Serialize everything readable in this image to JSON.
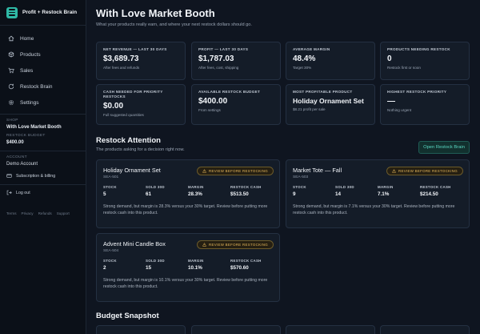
{
  "app": {
    "title": "Profit + Restock Brain"
  },
  "nav": [
    {
      "label": "Home",
      "icon": "home-icon"
    },
    {
      "label": "Products",
      "icon": "box-icon"
    },
    {
      "label": "Sales",
      "icon": "cart-icon"
    },
    {
      "label": "Restock Brain",
      "icon": "refresh-icon"
    },
    {
      "label": "Settings",
      "icon": "gear-icon"
    }
  ],
  "sidebar": {
    "shop_label": "SHOP",
    "shop_name": "With Love Market Booth",
    "budget_label": "RESTOCK BUDGET",
    "budget_value": "$400.00",
    "account_label": "ACCOUNT",
    "account_name": "Demo Account",
    "subscription_label": "Subscription & billing",
    "logout_label": "Log out",
    "footer": [
      "Terms",
      "Privacy",
      "Refunds",
      "Support"
    ]
  },
  "header": {
    "title": "With Love Market Booth",
    "subtitle": "What your products really earn, and where your next restock dollars should go."
  },
  "stats": [
    {
      "label": "NET REVENUE — LAST 30 DAYS",
      "value": "$3,689.73",
      "note": "After fees and refunds"
    },
    {
      "label": "PROFIT — LAST 30 DAYS",
      "value": "$1,787.03",
      "note": "After fees, cost, shipping"
    },
    {
      "label": "AVERAGE MARGIN",
      "value": "48.4%",
      "note": "Target 30%"
    },
    {
      "label": "PRODUCTS NEEDING RESTOCK",
      "value": "0",
      "note": "Restock first or soon"
    },
    {
      "label": "CASH NEEDED FOR PRIORITY RESTOCKS",
      "value": "$0.00",
      "note": "Full suggested quantities"
    },
    {
      "label": "AVAILABLE RESTOCK BUDGET",
      "value": "$400.00",
      "note": "From settings"
    },
    {
      "label": "MOST PROFITABLE PRODUCT",
      "value": "Holiday Ornament Set",
      "note": "$8.21 profit per sale"
    },
    {
      "label": "HIGHEST RESTOCK PRIORITY",
      "value": "—",
      "note": "Nothing urgent"
    }
  ],
  "restock": {
    "title": "Restock Attention",
    "subtitle": "The products asking for a decision right now.",
    "open_button": "Open Restock Brain",
    "metric_labels": {
      "stock": "STOCK",
      "sold": "SOLD 30D",
      "margin": "MARGIN",
      "cash": "RESTOCK CASH"
    },
    "products": [
      {
        "name": "Holiday Ornament Set",
        "sku": "SEA-501",
        "badge": "REVIEW BEFORE RESTOCKING",
        "stock": "5",
        "sold": "61",
        "margin": "28.3%",
        "cash": "$513.50",
        "desc": "Strong demand, but margin is 28.3% versus your 30% target. Review before putting more restock cash into this product."
      },
      {
        "name": "Market Tote — Fall",
        "sku": "SEA-503",
        "badge": "REVIEW BEFORE RESTOCKING",
        "stock": "9",
        "sold": "14",
        "margin": "7.1%",
        "cash": "$214.50",
        "desc": "Strong demand, but margin is 7.1% versus your 30% target. Review before putting more restock cash into this product."
      },
      {
        "name": "Advent Mini Candle Box",
        "sku": "SEA-504",
        "badge": "REVIEW BEFORE RESTOCKING",
        "stock": "2",
        "sold": "15",
        "margin": "10.1%",
        "cash": "$570.60",
        "desc": "Strong demand, but margin is 10.1% versus your 30% target. Review before putting more restock cash into this product."
      }
    ]
  },
  "budget": {
    "title": "Budget Snapshot"
  },
  "colors": {
    "accent": "#2fb9a6",
    "warning": "#e3b55a",
    "background": "#0f1520",
    "card": "#141c28"
  }
}
